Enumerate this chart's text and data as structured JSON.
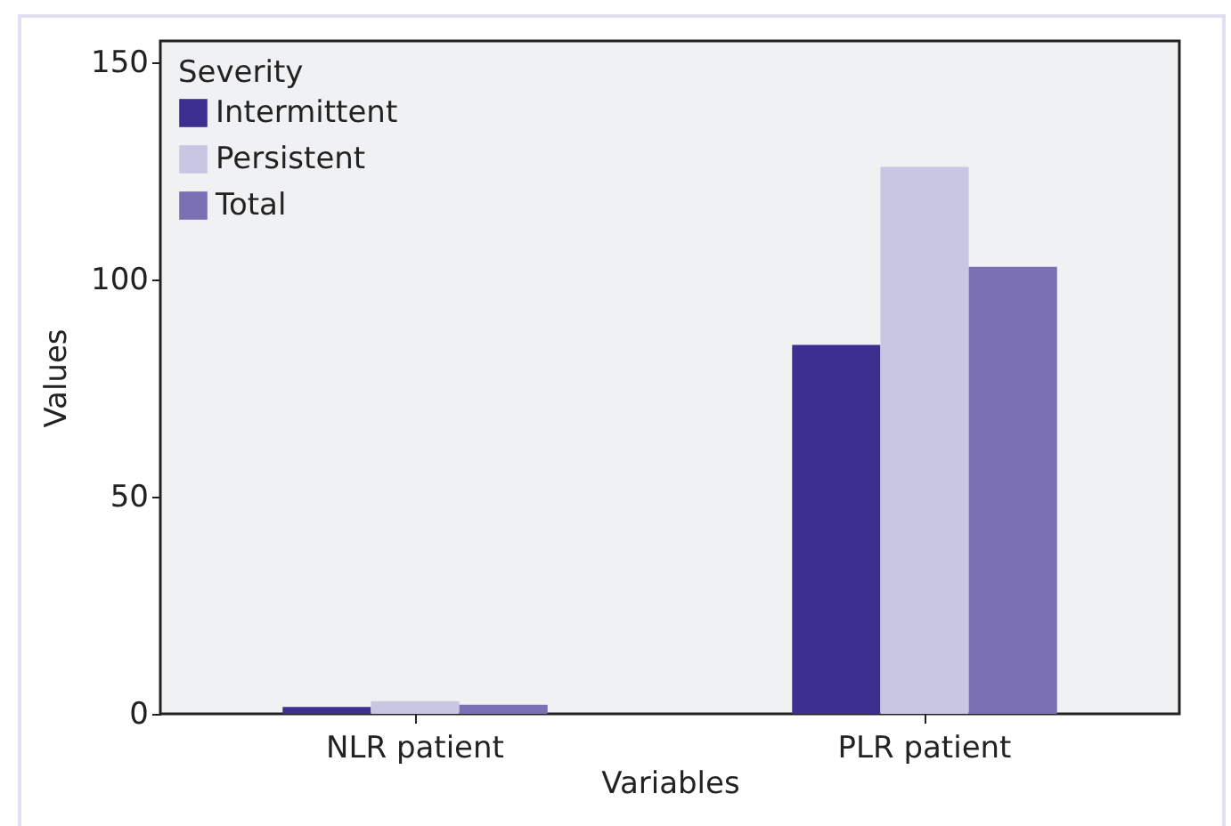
{
  "chart_data": {
    "type": "bar",
    "xlabel": "Variables",
    "ylabel": "Values",
    "legend_title": "Severity",
    "categories": [
      "NLR patient",
      "PLR patient"
    ],
    "series": [
      {
        "name": "Intermittent",
        "color": "#3b2f8f",
        "values": [
          1.6,
          85
        ]
      },
      {
        "name": "Persistent",
        "color": "#c8c6e2",
        "values": [
          2.9,
          126
        ]
      },
      {
        "name": "Total",
        "color": "#7b70b4",
        "values": [
          2.1,
          103
        ]
      }
    ],
    "ylim": [
      0,
      155
    ],
    "yticks": [
      0,
      50,
      100,
      150
    ],
    "grid": false,
    "legend": "top left"
  }
}
